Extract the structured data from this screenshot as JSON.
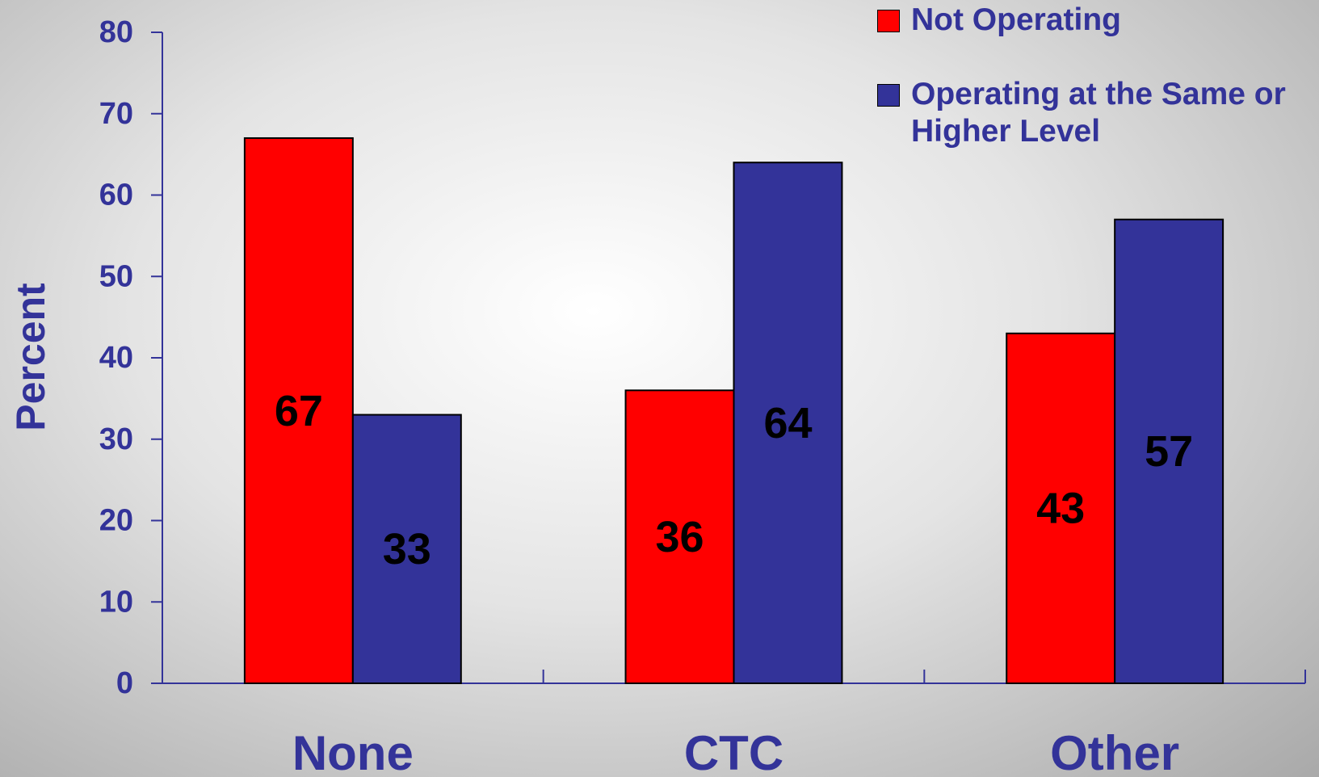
{
  "chart_data": {
    "type": "bar",
    "y_label": "Percent",
    "categories": [
      "None",
      "CTC",
      "Other"
    ],
    "series": [
      {
        "name": "Not Operating",
        "color": "#ff0000",
        "values": [
          67,
          36,
          43
        ]
      },
      {
        "name": "Operating at the Same or Higher Level",
        "color": "#333399",
        "values": [
          33,
          64,
          57
        ]
      }
    ],
    "ylim": [
      0,
      80
    ],
    "yticks": [
      0,
      10,
      20,
      30,
      40,
      50,
      60,
      70,
      80
    ],
    "legend": "top-right"
  }
}
